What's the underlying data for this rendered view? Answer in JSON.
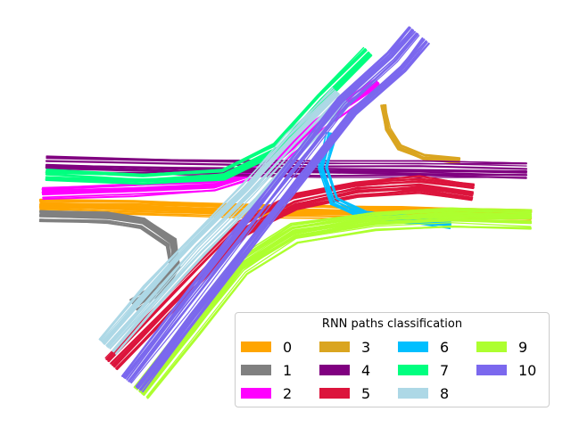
{
  "chart_data": {
    "type": "line",
    "title": "",
    "xlabel": "",
    "ylabel": "",
    "axes_visible": false,
    "grid": false,
    "legend": {
      "title": "RNN paths classification",
      "placement": "bottom-right",
      "columns": 4
    },
    "series": [
      {
        "name": "0",
        "color": "#ffa500",
        "count": 18,
        "path": [
          [
            45,
            232
          ],
          [
            150,
            234
          ],
          [
            260,
            238
          ],
          [
            360,
            238
          ],
          [
            450,
            240
          ],
          [
            595,
            244
          ]
        ],
        "spread": 8
      },
      {
        "name": "1",
        "color": "#808080",
        "count": 16,
        "path": [
          [
            45,
            242
          ],
          [
            120,
            244
          ],
          [
            160,
            250
          ],
          [
            192,
            272
          ],
          [
            196,
            298
          ],
          [
            180,
            322
          ],
          [
            150,
            342
          ]
        ],
        "spread": 6
      },
      {
        "name": "2",
        "color": "#ff00ff",
        "count": 18,
        "path": [
          [
            48,
            218
          ],
          [
            150,
            214
          ],
          [
            240,
            210
          ],
          [
            300,
            190
          ],
          [
            360,
            140
          ],
          [
            425,
            95
          ]
        ],
        "spread": 7
      },
      {
        "name": "3",
        "color": "#daa520",
        "count": 10,
        "path": [
          [
            430,
            118
          ],
          [
            434,
            145
          ],
          [
            448,
            165
          ],
          [
            475,
            176
          ],
          [
            515,
            180
          ]
        ],
        "spread": 3
      },
      {
        "name": "4",
        "color": "#800080",
        "count": 12,
        "path": [
          [
            52,
            183
          ],
          [
            200,
            186
          ],
          [
            360,
            188
          ],
          [
            470,
            188
          ],
          [
            590,
            190
          ]
        ],
        "spread": 10
      },
      {
        "name": "5",
        "color": "#dc143c",
        "count": 20,
        "path": [
          [
            125,
            408
          ],
          [
            200,
            330
          ],
          [
            270,
            258
          ],
          [
            330,
            226
          ],
          [
            400,
            212
          ],
          [
            470,
            207
          ],
          [
            530,
            215
          ]
        ],
        "spread": 10
      },
      {
        "name": "6",
        "color": "#00bfff",
        "count": 10,
        "path": [
          [
            372,
            150
          ],
          [
            362,
            188
          ],
          [
            375,
            225
          ],
          [
            410,
            242
          ],
          [
            460,
            246
          ],
          [
            505,
            250
          ]
        ],
        "spread": 5
      },
      {
        "name": "7",
        "color": "#00ff7f",
        "count": 14,
        "path": [
          [
            52,
            196
          ],
          [
            160,
            200
          ],
          [
            250,
            195
          ],
          [
            310,
            165
          ],
          [
            360,
            110
          ],
          [
            412,
            58
          ]
        ],
        "spread": 7
      },
      {
        "name": "8",
        "color": "#add8e6",
        "count": 24,
        "path": [
          [
            120,
            388
          ],
          [
            170,
            330
          ],
          [
            220,
            275
          ],
          [
            280,
            215
          ],
          [
            330,
            160
          ],
          [
            382,
            108
          ]
        ],
        "spread": 14
      },
      {
        "name": "9",
        "color": "#adff2f",
        "count": 22,
        "path": [
          [
            158,
            440
          ],
          [
            215,
            370
          ],
          [
            270,
            300
          ],
          [
            330,
            262
          ],
          [
            420,
            248
          ],
          [
            505,
            244
          ],
          [
            595,
            246
          ]
        ],
        "spread": 12
      },
      {
        "name": "10",
        "color": "#7b68ee",
        "count": 26,
        "path": [
          [
            148,
            430
          ],
          [
            210,
            350
          ],
          [
            270,
            272
          ],
          [
            330,
            195
          ],
          [
            390,
            120
          ],
          [
            445,
            70
          ],
          [
            470,
            40
          ]
        ],
        "spread": 14
      }
    ]
  }
}
